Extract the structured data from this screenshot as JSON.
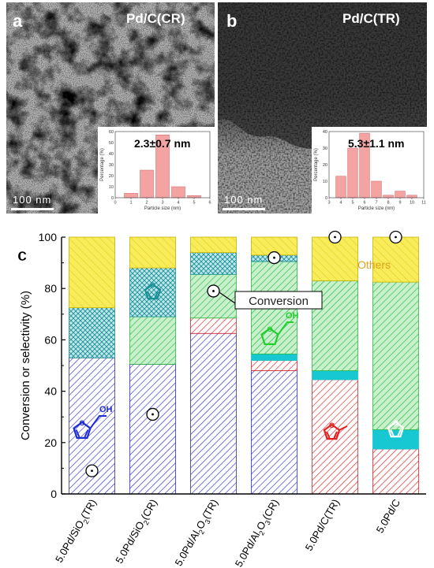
{
  "panels": {
    "a": {
      "letter": "a",
      "sample": "Pd/C(CR)",
      "size_text": "2.3±0.7 nm",
      "scale_bar": "100 nm",
      "hist": {
        "ylabel": "Percentage (%)",
        "xlabel": "Particle size (nm)",
        "xticks": [
          "0",
          "1",
          "2",
          "3",
          "4",
          "5",
          "6"
        ],
        "yticks": [
          "0",
          "10",
          "20",
          "30",
          "40",
          "50",
          "60"
        ],
        "xlim": [
          0,
          6
        ],
        "ylim": [
          0,
          60
        ],
        "bars": [
          {
            "x": 1,
            "value": 4
          },
          {
            "x": 2,
            "value": 25
          },
          {
            "x": 3,
            "value": 57
          },
          {
            "x": 4,
            "value": 10
          },
          {
            "x": 5,
            "value": 2
          }
        ],
        "color": "#f4a3a3"
      }
    },
    "b": {
      "letter": "b",
      "sample": "Pd/C(TR)",
      "size_text": "5.3±1.1 nm",
      "scale_bar": "100 nm",
      "hist": {
        "ylabel": "Percentage (%)",
        "xlabel": "Particle size (nm)",
        "xticks": [
          "3",
          "4",
          "5",
          "6",
          "7",
          "8",
          "9",
          "10",
          "11"
        ],
        "yticks": [
          "0",
          "10",
          "20",
          "30",
          "40"
        ],
        "xlim": [
          3,
          11
        ],
        "ylim": [
          0,
          40
        ],
        "bars": [
          {
            "x": 4,
            "value": 13
          },
          {
            "x": 5,
            "value": 30
          },
          {
            "x": 6,
            "value": 39
          },
          {
            "x": 7,
            "value": 10
          },
          {
            "x": 8,
            "value": 1.5
          },
          {
            "x": 9,
            "value": 4
          },
          {
            "x": 10,
            "value": 1.5
          }
        ],
        "color": "#f4a3a3"
      }
    }
  },
  "chart_data": {
    "type": "bar",
    "panel_letter": "c",
    "ylabel": "Conversion or selectivity (%)",
    "ylim": [
      0,
      100
    ],
    "yticks": [
      "0",
      "20",
      "40",
      "60",
      "80",
      "100"
    ],
    "categories_parts": [
      [
        "5.0Pd/SiO",
        "2",
        "(TR)"
      ],
      [
        "5.0Pd/SiO",
        "2",
        "(CR)"
      ],
      [
        "5.0Pd/Al",
        "2",
        "O",
        "3",
        "(TR)"
      ],
      [
        "5.0Pd/Al",
        "2",
        "O",
        "3",
        "(CR)"
      ],
      [
        "5.0Pd/C(TR)"
      ],
      [
        "5.0Pd/C"
      ]
    ],
    "categories": [
      "5.0Pd/SiO2(TR)",
      "5.0Pd/SiO2(CR)",
      "5.0Pd/Al2O3(TR)",
      "5.0Pd/Al2O3(CR)",
      "5.0Pd/C(TR)",
      "5.0Pd/C"
    ],
    "series": [
      {
        "product": "furfuryl alcohol",
        "color": "#2b2bd6",
        "values": [
          53,
          50.5,
          62.5,
          48,
          0,
          0
        ]
      },
      {
        "product": "2-methylfuran",
        "color": "#e32020",
        "values": [
          0,
          0,
          6,
          4,
          44.5,
          17.5
        ]
      },
      {
        "product": "furan",
        "color": "#17c8d2",
        "values": [
          0,
          0,
          0,
          2.5,
          3.5,
          7.5
        ]
      },
      {
        "product": "tetrahydrofurfuryl alcohol",
        "color": "#28b83c",
        "values": [
          0,
          18.5,
          17,
          36,
          35,
          57.5
        ]
      },
      {
        "product": "tetrahydrofuran",
        "color": "#1a8f96",
        "values": [
          19.5,
          19,
          8.5,
          2.5,
          0,
          0
        ]
      },
      {
        "product": "others",
        "color": "#f6e33a",
        "values": [
          27.5,
          12,
          6,
          7,
          17,
          17.5
        ]
      }
    ],
    "conversion": [
      9,
      31,
      79,
      92,
      100,
      100
    ],
    "legend": {
      "conversion_label": "Conversion",
      "others_label": "Others"
    },
    "molecule_colors": {
      "furfuryl_alcohol": "#1e2ed6",
      "furan": "#1a8f96",
      "thfa": "#21cf2f",
      "methylfuran": "#e32020"
    },
    "molecule_labels": {
      "oh": "OH"
    }
  }
}
